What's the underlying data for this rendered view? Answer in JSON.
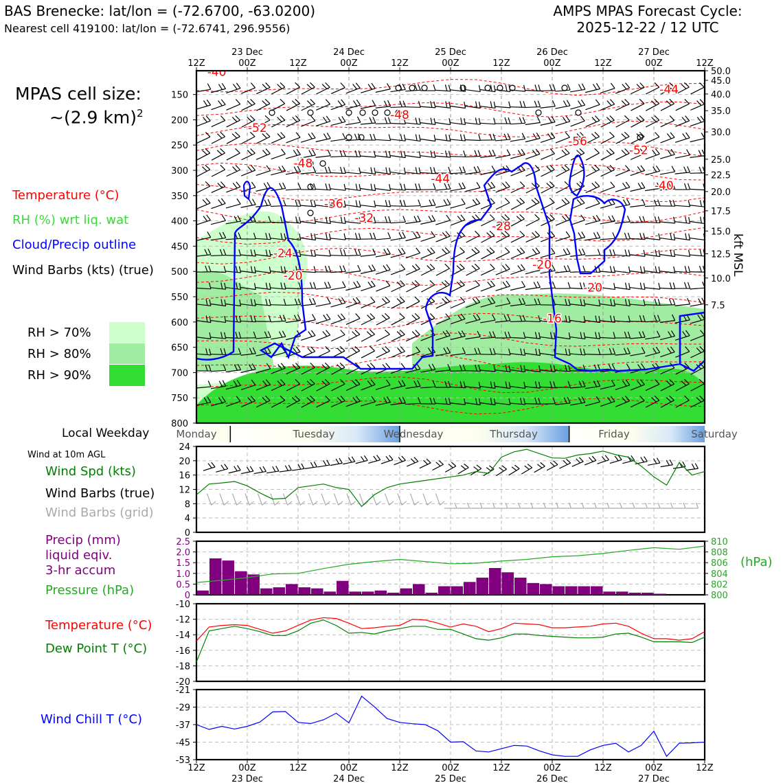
{
  "header": {
    "station_title": "BAS Brenecke: lat/lon = (-72.6700, -63.0200)",
    "nearest_cell": "Nearest cell 419100: lat/lon = (-72.6741, 296.9556)",
    "cycle_line1": "AMPS MPAS Forecast Cycle:",
    "cycle_line2": "2025-12-22 / 12 UTC"
  },
  "cell_size": {
    "line1": "MPAS cell size:",
    "line2": "~(2.9 km)",
    "sup": "2"
  },
  "legend": {
    "temperature": "Temperature (°C)",
    "rh": "RH (%) wrt liq. wat",
    "cloud": "Cloud/Precip outline",
    "wind": "Wind Barbs (kts) (true)",
    "rh70": "RH > 70%",
    "rh80": "RH > 80%",
    "rh90": "RH > 90%"
  },
  "colors": {
    "temperature": "#ff0000",
    "rh_text": "#33dd33",
    "cloud": "#0000ff",
    "rh70": "#ccffcc",
    "rh80": "#a0eca0",
    "rh90": "#33dd33",
    "wind_chill": "#0000ff",
    "dewpoint": "#008000",
    "precip": "#800080",
    "pressure": "#22aa22",
    "wind_speed": "#008000",
    "grid_barbs": "#aaaaaa"
  },
  "time_axis": {
    "top_dates": [
      "23 Dec",
      "24 Dec",
      "25 Dec",
      "26 Dec",
      "27 Dec"
    ],
    "ticks": [
      "12Z",
      "00Z",
      "12Z",
      "00Z",
      "12Z",
      "00Z",
      "12Z",
      "00Z",
      "12Z",
      "00Z",
      "12Z"
    ],
    "bottom_dates": [
      "23 Dec",
      "24 Dec",
      "25 Dec",
      "26 Dec",
      "27 Dec"
    ]
  },
  "weekday": {
    "label": "Local Weekday",
    "days": [
      "Monday",
      "Tuesday",
      "Wednesday",
      "Thursday",
      "Friday",
      "Saturday"
    ]
  },
  "chart_data": [
    {
      "type": "heatmap",
      "name": "vertical cross-section",
      "ylabel_right": "kft MSL",
      "pressure_ticks": [
        150,
        200,
        250,
        300,
        350,
        400,
        450,
        500,
        550,
        600,
        650,
        700,
        750,
        800
      ],
      "kft_ticks": [
        "50.0",
        "45.0",
        "40.0",
        "35.0",
        "30.0",
        "25.0",
        "22.5",
        "20.0",
        "17.5",
        "15.0",
        "12.5",
        "10.0",
        "7.5"
      ],
      "kft_pressure": [
        103,
        122,
        149,
        182,
        224,
        278,
        309,
        342,
        380,
        420,
        465,
        513,
        566
      ],
      "ylim": [
        800,
        103
      ],
      "temperature_labels": [
        {
          "text": "-40",
          "x": 4,
          "p": 105
        },
        {
          "text": "-44",
          "x": 93,
          "p": 140
        },
        {
          "text": "-48",
          "x": 40,
          "p": 190
        },
        {
          "text": "-52",
          "x": 12,
          "p": 216
        },
        {
          "text": "-56",
          "x": 75,
          "p": 242
        },
        {
          "text": "-52",
          "x": 87,
          "p": 260
        },
        {
          "text": "-48",
          "x": 21,
          "p": 286
        },
        {
          "text": "-44",
          "x": 48,
          "p": 316
        },
        {
          "text": "-40",
          "x": 92,
          "p": 330
        },
        {
          "text": "-36",
          "x": 27,
          "p": 366
        },
        {
          "text": "-32",
          "x": 33,
          "p": 394
        },
        {
          "text": "-28",
          "x": 60,
          "p": 410
        },
        {
          "text": "-24",
          "x": 17,
          "p": 464
        },
        {
          "text": "-20",
          "x": 19,
          "p": 508
        },
        {
          "text": "-20",
          "x": 68,
          "p": 486
        },
        {
          "text": "-20",
          "x": 78,
          "p": 532
        },
        {
          "text": "-16",
          "x": 70,
          "p": 593
        }
      ]
    },
    {
      "type": "line",
      "name": "wind at 10m",
      "title": "Wind at 10m AGL",
      "labels": [
        "Wind Spd (kts)",
        "Wind Barbs (true)",
        "Wind Barbs (grid)"
      ],
      "yticks": [
        0,
        4,
        8,
        12,
        16,
        20,
        24
      ],
      "ylim": [
        0,
        24
      ],
      "x": [
        0,
        3,
        6,
        9,
        12,
        15,
        18,
        21,
        24,
        27,
        30,
        33,
        36,
        39,
        42,
        45,
        48,
        51,
        54,
        57,
        60,
        63,
        66,
        69,
        72,
        75,
        78,
        81,
        84,
        87,
        90,
        93,
        96,
        99,
        102,
        105,
        108,
        111,
        114,
        117,
        120
      ],
      "series": [
        {
          "values": [
            10.5,
            13.5,
            13.8,
            14.2,
            13,
            11,
            9.3,
            9.5,
            12.5,
            13,
            13.5,
            12.5,
            12,
            7.2,
            10.5,
            12.5,
            13.5,
            14,
            14.5,
            15,
            15.5,
            16,
            17,
            16.5,
            21,
            22.5,
            23.2,
            22,
            20.8,
            20.7,
            21.6,
            22,
            22.7,
            21.7,
            21,
            18.5,
            15.5,
            13.2,
            19.5,
            16,
            17
          ]
        }
      ]
    },
    {
      "type": "bar",
      "name": "precip and pressure",
      "labels": [
        "Precip (mm)",
        "liquid eqiv.",
        "3-hr accum",
        "Pressure (hPa)"
      ],
      "ylabel_right": "(hPa)",
      "yticks_left": [
        "0",
        "0.5",
        "1.0",
        "1.5",
        "2.0",
        "2.5"
      ],
      "yticks_right": [
        "800",
        "802",
        "804",
        "806",
        "808",
        "810"
      ],
      "ylim": [
        0,
        2.5
      ],
      "ylim_right": [
        800,
        810
      ],
      "precip_bins": [
        0.2,
        1.7,
        1.6,
        1.1,
        0.95,
        0.3,
        0.35,
        0.5,
        0.35,
        0.3,
        0.15,
        0.65,
        0.15,
        0.15,
        0.2,
        0.1,
        0.3,
        0.5,
        0.1,
        0.4,
        0.4,
        0.6,
        0.8,
        1.25,
        1.05,
        0.8,
        0.55,
        0.5,
        0.4,
        0.4,
        0.4,
        0.4,
        0.15,
        0.15,
        0.1,
        0.1,
        0.05,
        0,
        0,
        0
      ],
      "pressure_x": [
        0,
        6,
        12,
        18,
        24,
        30,
        36,
        42,
        48,
        54,
        60,
        66,
        72,
        78,
        84,
        90,
        96,
        102,
        108,
        114,
        120
      ],
      "pressure": [
        802.3,
        802.7,
        803.2,
        803.9,
        804,
        804.9,
        805.7,
        806.2,
        806.6,
        806.2,
        805.8,
        805.9,
        806.3,
        806.6,
        807.1,
        807.3,
        807.7,
        808.3,
        808.8,
        808.5,
        809.1
      ]
    },
    {
      "type": "line",
      "name": "temperature and dewpoint",
      "labels": [
        "Temperature (°C)",
        "Dew Point T (°C)"
      ],
      "yticks": [
        -10,
        -12,
        -14,
        -16,
        -18,
        -20
      ],
      "ylim": [
        -20,
        -10
      ],
      "x": [
        0,
        3,
        6,
        9,
        12,
        15,
        18,
        21,
        24,
        27,
        30,
        33,
        36,
        39,
        42,
        45,
        48,
        51,
        54,
        57,
        60,
        63,
        66,
        69,
        72,
        75,
        78,
        81,
        84,
        87,
        90,
        93,
        96,
        99,
        102,
        105,
        108,
        111,
        114,
        117,
        120
      ],
      "series": [
        {
          "name": "Temperature",
          "values": [
            -14.8,
            -13,
            -12.8,
            -12.7,
            -12.8,
            -13.3,
            -13.8,
            -13.5,
            -12.8,
            -12.1,
            -11.8,
            -11.9,
            -12.5,
            -13.2,
            -13.1,
            -12.9,
            -12.8,
            -12,
            -12.1,
            -12.5,
            -13,
            -12.6,
            -12.9,
            -13.6,
            -13.2,
            -12.5,
            -12.6,
            -12.7,
            -13.1,
            -13.1,
            -13,
            -12.9,
            -12.6,
            -12.5,
            -12.9,
            -13.8,
            -14.5,
            -14.5,
            -14.7,
            -14.5,
            -13.6
          ]
        },
        {
          "name": "Dew Point",
          "values": [
            -17.5,
            -13.5,
            -13.2,
            -12.9,
            -13.2,
            -13.6,
            -14.1,
            -14.1,
            -13.5,
            -12.5,
            -12.1,
            -12.8,
            -13.8,
            -13.7,
            -13.9,
            -13.5,
            -13.2,
            -12.9,
            -12.9,
            -13.3,
            -13.3,
            -13.9,
            -14.5,
            -14.7,
            -14.4,
            -13.9,
            -13.9,
            -14.1,
            -14.2,
            -14.3,
            -14.4,
            -14.4,
            -14.3,
            -13.9,
            -13.8,
            -14.3,
            -14.9,
            -14.9,
            -14.9,
            -15,
            -14.3
          ]
        }
      ]
    },
    {
      "type": "line",
      "name": "wind chill",
      "labels": [
        "Wind Chill T (°C)"
      ],
      "yticks": [
        -21,
        -29,
        -37,
        -45,
        -53
      ],
      "ylim": [
        -53,
        -21
      ],
      "x": [
        0,
        3,
        6,
        9,
        12,
        15,
        18,
        21,
        24,
        27,
        30,
        33,
        36,
        39,
        42,
        45,
        48,
        51,
        54,
        57,
        60,
        63,
        66,
        69,
        72,
        75,
        78,
        81,
        84,
        87,
        90,
        93,
        96,
        99,
        102,
        105,
        108,
        111,
        114,
        117,
        120
      ],
      "series": [
        {
          "values": [
            -37,
            -39.2,
            -37.8,
            -39,
            -37.8,
            -35.8,
            -31.2,
            -31,
            -36,
            -36.5,
            -34.8,
            -31.8,
            -36.2,
            -24,
            -28.8,
            -34.2,
            -36,
            -36.6,
            -37,
            -39.8,
            -45,
            -44.8,
            -49,
            -49.5,
            -48,
            -46.5,
            -46.8,
            -49,
            -50.8,
            -51.5,
            -51.5,
            -48.5,
            -46.5,
            -45.5,
            -49.5,
            -46.5,
            -40,
            -51.5,
            -45.5,
            -45.3,
            -45
          ]
        }
      ]
    }
  ]
}
